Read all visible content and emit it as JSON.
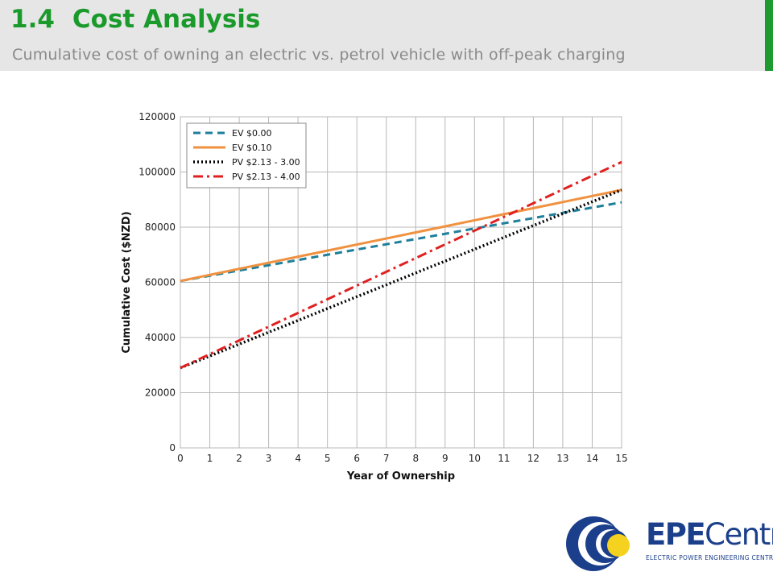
{
  "header": {
    "section_number": "1.4",
    "title": "Cost Analysis",
    "subtitle": "Cumulative cost of owning an electric vs. petrol vehicle with off-peak charging"
  },
  "colors": {
    "header_bg": "#e6e6e6",
    "accent_green": "#1b9a2c",
    "subtitle_gray": "#8a8a8a",
    "logo_blue": "#1b3f8b",
    "logo_yellow": "#f5d21f"
  },
  "chart_data": {
    "type": "line",
    "xlabel": "Year of Ownership",
    "ylabel": "Cumulative Cost ($NZD)",
    "xlim": [
      0,
      15
    ],
    "ylim": [
      0,
      120000
    ],
    "x_ticks": [
      0,
      1,
      2,
      3,
      4,
      5,
      6,
      7,
      8,
      9,
      10,
      11,
      12,
      13,
      14,
      15
    ],
    "y_ticks": [
      0,
      20000,
      40000,
      60000,
      80000,
      100000,
      120000
    ],
    "grid": true,
    "legend_position": "top-left",
    "x": [
      0,
      1,
      2,
      3,
      4,
      5,
      6,
      7,
      8,
      9,
      10,
      11,
      12,
      13,
      14,
      15
    ],
    "series": [
      {
        "name": "EV $0.00",
        "color": "#1f7f9b",
        "dash": "dashed",
        "values": [
          60500,
          62400,
          64300,
          66200,
          68100,
          70000,
          71900,
          73800,
          75700,
          77600,
          79500,
          81400,
          83300,
          85200,
          87100,
          89000
        ]
      },
      {
        "name": "EV $0.10",
        "color": "#f0913f",
        "dash": "solid",
        "values": [
          60500,
          62700,
          64900,
          67100,
          69300,
          71500,
          73700,
          75900,
          78100,
          80300,
          82500,
          84700,
          86900,
          89100,
          91300,
          93500
        ]
      },
      {
        "name": "PV $2.13 - 3.00",
        "color": "#000000",
        "dash": "dotted",
        "values": [
          29000,
          33300,
          37600,
          41900,
          46200,
          50500,
          54800,
          59100,
          63400,
          67700,
          72000,
          76300,
          80600,
          84900,
          89200,
          93500
        ]
      },
      {
        "name": "PV $2.13 - 4.00",
        "color": "#e02020",
        "dash": "dashdot",
        "values": [
          29000,
          33970,
          38950,
          43920,
          48900,
          53870,
          58840,
          63820,
          68790,
          73760,
          78740,
          83710,
          88680,
          93660,
          98630,
          103600
        ]
      }
    ]
  },
  "logo": {
    "word_bold": "EPE",
    "word_regular": "Centre",
    "tagline": "ELECTRIC POWER ENGINEERING CENTRE"
  }
}
